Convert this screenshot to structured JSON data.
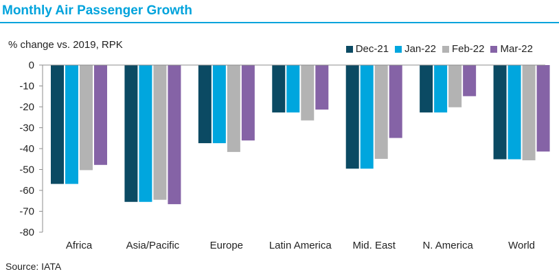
{
  "chart_data": {
    "type": "bar",
    "title": "Monthly Air Passenger Growth",
    "ylabel": "% change vs. 2019, RPK",
    "xlabel": "",
    "source": "Source:  IATA",
    "categories": [
      "Africa",
      "Asia/Pacific",
      "Europe",
      "Latin America",
      "Mid. East",
      "N. America",
      "World"
    ],
    "ylim": [
      -80,
      0
    ],
    "yticks": [
      "0",
      "-10",
      "-20",
      "-30",
      "-40",
      "-50",
      "-60",
      "-70",
      "-80"
    ],
    "legend_position": "top-right",
    "grid": false,
    "series": [
      {
        "name": "Dec-21",
        "color": "#0b4a63",
        "values": [
          -56.9,
          -65.5,
          -37.4,
          -22.7,
          -49.6,
          -22.7,
          -45.1
        ]
      },
      {
        "name": "Jan-22",
        "color": "#00a6de",
        "values": [
          -56.9,
          -65.5,
          -37.4,
          -22.7,
          -49.6,
          -22.7,
          -45.1
        ]
      },
      {
        "name": "Feb-22",
        "color": "#b3b3b3",
        "values": [
          -50.3,
          -64.5,
          -41.6,
          -26.5,
          -44.9,
          -20.2,
          -45.6
        ]
      },
      {
        "name": "Mar-22",
        "color": "#8563a6",
        "values": [
          -47.8,
          -66.6,
          -36.1,
          -21.3,
          -34.9,
          -14.9,
          -41.4
        ]
      }
    ]
  }
}
